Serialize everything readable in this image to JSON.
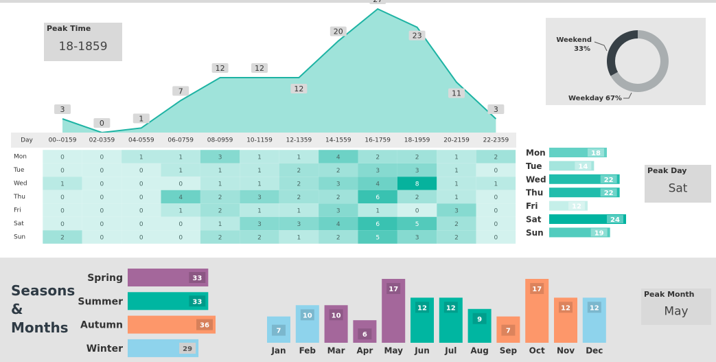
{
  "chart_data": [
    {
      "type": "area",
      "categories": [
        "00--0159",
        "02-0359",
        "04-0559",
        "06-0759",
        "08-0959",
        "10-1159",
        "12-1359",
        "14-1559",
        "16-1759",
        "18-1959",
        "20-2159",
        "22-2359"
      ],
      "values": [
        3,
        0,
        1,
        7,
        12,
        12,
        12,
        20,
        27,
        23,
        11,
        3
      ],
      "color": "#9fe3da",
      "line_color": "#1db3a3",
      "ylim": [
        0,
        30
      ]
    },
    {
      "type": "heatmap",
      "row_header": "Day",
      "rows": [
        {
          "name": "Mon",
          "values": [
            0,
            0,
            1,
            1,
            3,
            1,
            1,
            4,
            2,
            2,
            1,
            2
          ]
        },
        {
          "name": "Tue",
          "values": [
            0,
            0,
            0,
            1,
            1,
            1,
            2,
            2,
            3,
            3,
            1,
            0
          ]
        },
        {
          "name": "Wed",
          "values": [
            1,
            0,
            0,
            0,
            1,
            1,
            2,
            3,
            4,
            8,
            1,
            1
          ]
        },
        {
          "name": "Thu",
          "values": [
            0,
            0,
            0,
            4,
            2,
            3,
            2,
            2,
            6,
            2,
            1,
            0
          ]
        },
        {
          "name": "Fri",
          "values": [
            0,
            0,
            0,
            1,
            2,
            1,
            1,
            3,
            1,
            0,
            3,
            0
          ]
        },
        {
          "name": "Sat",
          "values": [
            0,
            0,
            0,
            0,
            1,
            3,
            3,
            4,
            6,
            5,
            2,
            0
          ]
        },
        {
          "name": "Sun",
          "values": [
            2,
            0,
            0,
            0,
            2,
            2,
            1,
            2,
            5,
            3,
            2,
            0
          ]
        }
      ],
      "colors": [
        "#d3f2ee",
        "#06b29d"
      ],
      "vlim": [
        0,
        8
      ]
    },
    {
      "type": "hbar",
      "categories": [
        "Mon",
        "Tue",
        "Wed",
        "Thu",
        "Fri",
        "Sat",
        "Sun"
      ],
      "values": [
        18,
        14,
        22,
        22,
        12,
        24,
        19
      ],
      "colors": [
        "#c5efe9",
        "#00b3a0"
      ],
      "xlim": [
        0,
        24
      ]
    },
    {
      "type": "donut",
      "categories": [
        "Weekend",
        "Weekday"
      ],
      "values": [
        33,
        67
      ],
      "value_labels": [
        "33%",
        "67%"
      ],
      "colors": [
        "#374046",
        "#a9aeb0"
      ]
    },
    {
      "type": "hbar2",
      "categories": [
        "Spring",
        "Summer",
        "Autumn",
        "Winter"
      ],
      "values": [
        33,
        33,
        36,
        29
      ],
      "colors": [
        "#a4679b",
        "#00b6a1",
        "#fd976a",
        "#8ed3ec"
      ],
      "xlim": [
        0,
        36
      ]
    },
    {
      "type": "column",
      "categories": [
        "Jan",
        "Feb",
        "Mar",
        "Apr",
        "May",
        "Jun",
        "Jul",
        "Aug",
        "Sep",
        "Oct",
        "Nov",
        "Dec"
      ],
      "values": [
        7,
        10,
        10,
        6,
        17,
        12,
        12,
        9,
        7,
        17,
        12,
        12
      ],
      "colors": [
        "#8ed3ec",
        "#8ed3ec",
        "#a4679b",
        "#a4679b",
        "#a4679b",
        "#00b6a1",
        "#00b6a1",
        "#00b6a1",
        "#fd976a",
        "#fd976a",
        "#fd976a",
        "#8ed3ec"
      ],
      "ylim": [
        0,
        17
      ]
    }
  ],
  "cards": [
    {
      "label": "Peak Time",
      "value": "18-1859"
    },
    {
      "label": "Peak Day",
      "value": "Sat"
    },
    {
      "label": "Peak Month",
      "value": "May"
    }
  ],
  "section_title": "Seasons & Months"
}
